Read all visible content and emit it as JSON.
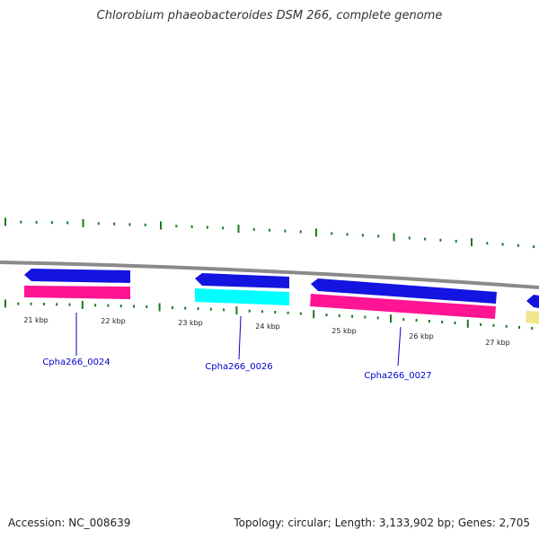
{
  "title": "Chlorobium phaeobacteroides DSM 266, complete genome",
  "footer": {
    "accession": "Accession: NC_008639",
    "summary": "Topology: circular; Length: 3,133,902 bp; Genes: 2,705"
  },
  "colors": {
    "backbone": "#8a8a8a",
    "tick": "#1e7a1e",
    "forward_gene": "#1414e0",
    "cds_magenta": "#ff1493",
    "cds_cyan": "#00ffff",
    "cds_yellow": "#f0e68c",
    "label": "#0000cc",
    "kbp_label": "#222222"
  },
  "genes": [
    {
      "name": "cds-0024",
      "fill": "#ff1493"
    },
    {
      "name": "cds-0026",
      "fill": "#00ffff"
    },
    {
      "name": "cds-0027",
      "fill": "#ff1493"
    },
    {
      "name": "cds-0028",
      "fill": "#f0e68c"
    }
  ],
  "forward_genes": [
    {
      "name": "gene-0024"
    },
    {
      "name": "gene-0026"
    },
    {
      "name": "gene-0027"
    },
    {
      "name": "gene-0028"
    }
  ],
  "kbp_labels": [
    "21 kbp",
    "22 kbp",
    "23 kbp",
    "24 kbp",
    "25 kbp",
    "26 kbp",
    "27 kbp"
  ],
  "gene_labels": [
    "Cpha266_0024",
    "Cpha266_0026",
    "Cpha266_0027"
  ]
}
